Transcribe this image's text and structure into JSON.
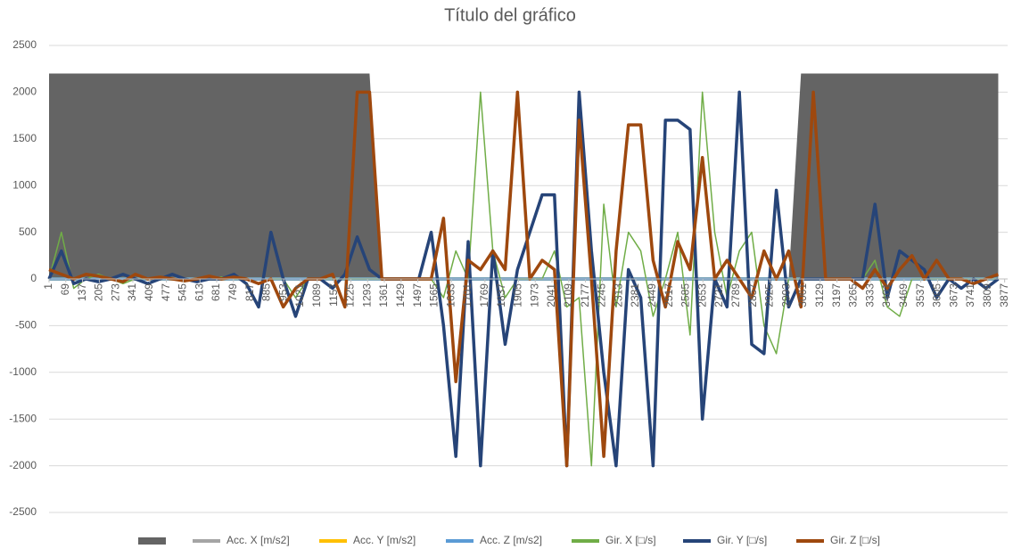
{
  "chart_data": {
    "type": "line",
    "title": "Título del gráfico",
    "x": [
      1,
      51,
      101,
      151,
      201,
      251,
      301,
      351,
      401,
      451,
      501,
      551,
      601,
      651,
      701,
      751,
      801,
      851,
      901,
      951,
      1001,
      1051,
      1101,
      1151,
      1201,
      1251,
      1301,
      1351,
      1401,
      1451,
      1501,
      1551,
      1601,
      1651,
      1701,
      1751,
      1801,
      1851,
      1901,
      1951,
      2001,
      2051,
      2101,
      2151,
      2201,
      2251,
      2301,
      2351,
      2401,
      2451,
      2501,
      2551,
      2601,
      2651,
      2701,
      2751,
      2801,
      2851,
      2901,
      2951,
      3001,
      3051,
      3101,
      3151,
      3201,
      3251,
      3301,
      3351,
      3401,
      3451,
      3501,
      3551,
      3601,
      3651,
      3701,
      3751,
      3801,
      3851
    ],
    "xlim": [
      1,
      3900
    ],
    "xticks": [
      1,
      69,
      137,
      205,
      273,
      341,
      409,
      477,
      545,
      613,
      681,
      749,
      817,
      885,
      953,
      1021,
      1089,
      1157,
      1225,
      1293,
      1361,
      1429,
      1497,
      1565,
      1633,
      1701,
      1769,
      1837,
      1905,
      1973,
      2041,
      2109,
      2177,
      2245,
      2313,
      2381,
      2449,
      2517,
      2585,
      2653,
      2721,
      2789,
      2857,
      2925,
      2993,
      3061,
      3129,
      3197,
      3265,
      3333,
      3401,
      3469,
      3537,
      3605,
      3673,
      3741,
      3809,
      3877
    ],
    "ylim": [
      -2500,
      2500
    ],
    "yticks": [
      -2500,
      -2000,
      -1500,
      -1000,
      -500,
      0,
      500,
      1000,
      1500,
      2000,
      2500
    ],
    "grid": true,
    "legend": "bottom",
    "series": [
      {
        "kind": "area",
        "color": "#646464",
        "values": [
          2200,
          2200,
          2200,
          2200,
          2200,
          2200,
          2200,
          2200,
          2200,
          2200,
          2200,
          2200,
          2200,
          2200,
          2200,
          2200,
          2200,
          2200,
          2200,
          2200,
          2200,
          2200,
          2200,
          2200,
          2200,
          2200,
          2200,
          0,
          0,
          0,
          0,
          0,
          0,
          0,
          0,
          0,
          0,
          0,
          0,
          0,
          0,
          0,
          0,
          0,
          0,
          0,
          0,
          0,
          0,
          0,
          0,
          0,
          0,
          0,
          0,
          0,
          0,
          0,
          0,
          0,
          0,
          2200,
          2200,
          2200,
          2200,
          2200,
          2200,
          2200,
          2200,
          2200,
          2200,
          2200,
          2200,
          2200,
          2200,
          2200,
          2200,
          2200
        ]
      },
      {
        "name": "Acc. X [m/s2]",
        "color": "#a5a5a5",
        "values": [
          0,
          0,
          0,
          0,
          0,
          0,
          0,
          0,
          0,
          0,
          0,
          0,
          0,
          0,
          0,
          0,
          0,
          0,
          0,
          0,
          0,
          0,
          0,
          0,
          0,
          0,
          0,
          0,
          0,
          0,
          0,
          0,
          0,
          0,
          0,
          0,
          0,
          0,
          0,
          0,
          0,
          0,
          0,
          0,
          0,
          0,
          0,
          0,
          0,
          0,
          0,
          0,
          0,
          0,
          0,
          0,
          0,
          0,
          0,
          0,
          0,
          0,
          0,
          0,
          0,
          0,
          0,
          0,
          0,
          0,
          0,
          0,
          0,
          0,
          0,
          0,
          0,
          0
        ]
      },
      {
        "name": "Acc. Y [m/s2]",
        "color": "#ffc000",
        "values": [
          0,
          0,
          0,
          0,
          0,
          0,
          0,
          0,
          0,
          0,
          0,
          0,
          0,
          0,
          0,
          0,
          0,
          0,
          0,
          0,
          0,
          0,
          0,
          0,
          0,
          0,
          0,
          0,
          0,
          0,
          0,
          0,
          0,
          0,
          0,
          0,
          0,
          0,
          0,
          0,
          0,
          0,
          0,
          0,
          0,
          0,
          0,
          0,
          0,
          0,
          0,
          0,
          0,
          0,
          0,
          0,
          0,
          0,
          0,
          0,
          0,
          0,
          0,
          0,
          0,
          0,
          0,
          0,
          0,
          0,
          0,
          0,
          0,
          0,
          0,
          0,
          0,
          0
        ]
      },
      {
        "name": "Acc. Z [m/s2]",
        "color": "#5b9bd5",
        "values": [
          0,
          0,
          0,
          0,
          0,
          0,
          0,
          0,
          0,
          0,
          0,
          0,
          0,
          0,
          0,
          0,
          0,
          0,
          0,
          0,
          0,
          0,
          0,
          0,
          0,
          0,
          0,
          0,
          0,
          0,
          0,
          0,
          0,
          0,
          0,
          0,
          0,
          0,
          0,
          0,
          0,
          0,
          0,
          0,
          0,
          0,
          0,
          0,
          0,
          0,
          0,
          0,
          0,
          0,
          0,
          0,
          0,
          0,
          0,
          0,
          0,
          0,
          0,
          0,
          0,
          0,
          0,
          0,
          0,
          0,
          0,
          0,
          0,
          0,
          0,
          0,
          0,
          0
        ]
      },
      {
        "name": "Gir. X [□/s]",
        "color": "#70ad47",
        "values": [
          0,
          500,
          -100,
          0,
          50,
          0,
          -50,
          0,
          0,
          30,
          0,
          -30,
          0,
          0,
          20,
          0,
          0,
          -50,
          0,
          0,
          -200,
          0,
          0,
          0,
          0,
          0,
          0,
          0,
          0,
          0,
          0,
          0,
          -200,
          300,
          0,
          2000,
          300,
          -200,
          0,
          0,
          0,
          300,
          -300,
          -200,
          -2000,
          800,
          -300,
          500,
          300,
          -400,
          0,
          500,
          -600,
          2000,
          500,
          -200,
          300,
          500,
          -500,
          -800,
          0,
          0,
          0,
          0,
          0,
          0,
          0,
          200,
          -300,
          -400,
          0,
          0,
          0,
          0,
          0,
          0,
          0,
          0
        ]
      },
      {
        "name": "Gir. Y [□/s]",
        "color": "#264478",
        "values": [
          0,
          300,
          -50,
          0,
          -30,
          0,
          50,
          0,
          -50,
          0,
          50,
          0,
          -30,
          0,
          0,
          50,
          -50,
          -300,
          500,
          0,
          -400,
          0,
          0,
          -100,
          50,
          450,
          100,
          0,
          0,
          0,
          0,
          500,
          -500,
          -1900,
          400,
          -2000,
          300,
          -700,
          100,
          500,
          900,
          900,
          -2000,
          2000,
          300,
          -1000,
          -2000,
          100,
          -200,
          -2000,
          1700,
          1700,
          1600,
          -1500,
          0,
          -300,
          2000,
          -700,
          -800,
          950,
          -300,
          0,
          0,
          0,
          0,
          0,
          0,
          800,
          -200,
          300,
          200,
          100,
          -200,
          0,
          -100,
          0,
          -100,
          0
        ]
      },
      {
        "name": "Gir. Z [□/s]",
        "color": "#9e480e",
        "values": [
          100,
          50,
          0,
          50,
          30,
          0,
          -30,
          50,
          0,
          20,
          0,
          -20,
          0,
          30,
          0,
          20,
          0,
          -50,
          0,
          -300,
          -100,
          0,
          0,
          50,
          -300,
          2000,
          2000,
          0,
          0,
          0,
          0,
          0,
          650,
          -1100,
          200,
          100,
          300,
          100,
          2000,
          0,
          200,
          100,
          -2000,
          1700,
          0,
          -1900,
          300,
          1650,
          1650,
          200,
          -300,
          400,
          100,
          1300,
          0,
          200,
          0,
          -200,
          300,
          0,
          300,
          -300,
          2000,
          0,
          0,
          0,
          -100,
          100,
          -100,
          100,
          250,
          0,
          200,
          0,
          0,
          -50,
          0,
          50
        ]
      }
    ]
  }
}
